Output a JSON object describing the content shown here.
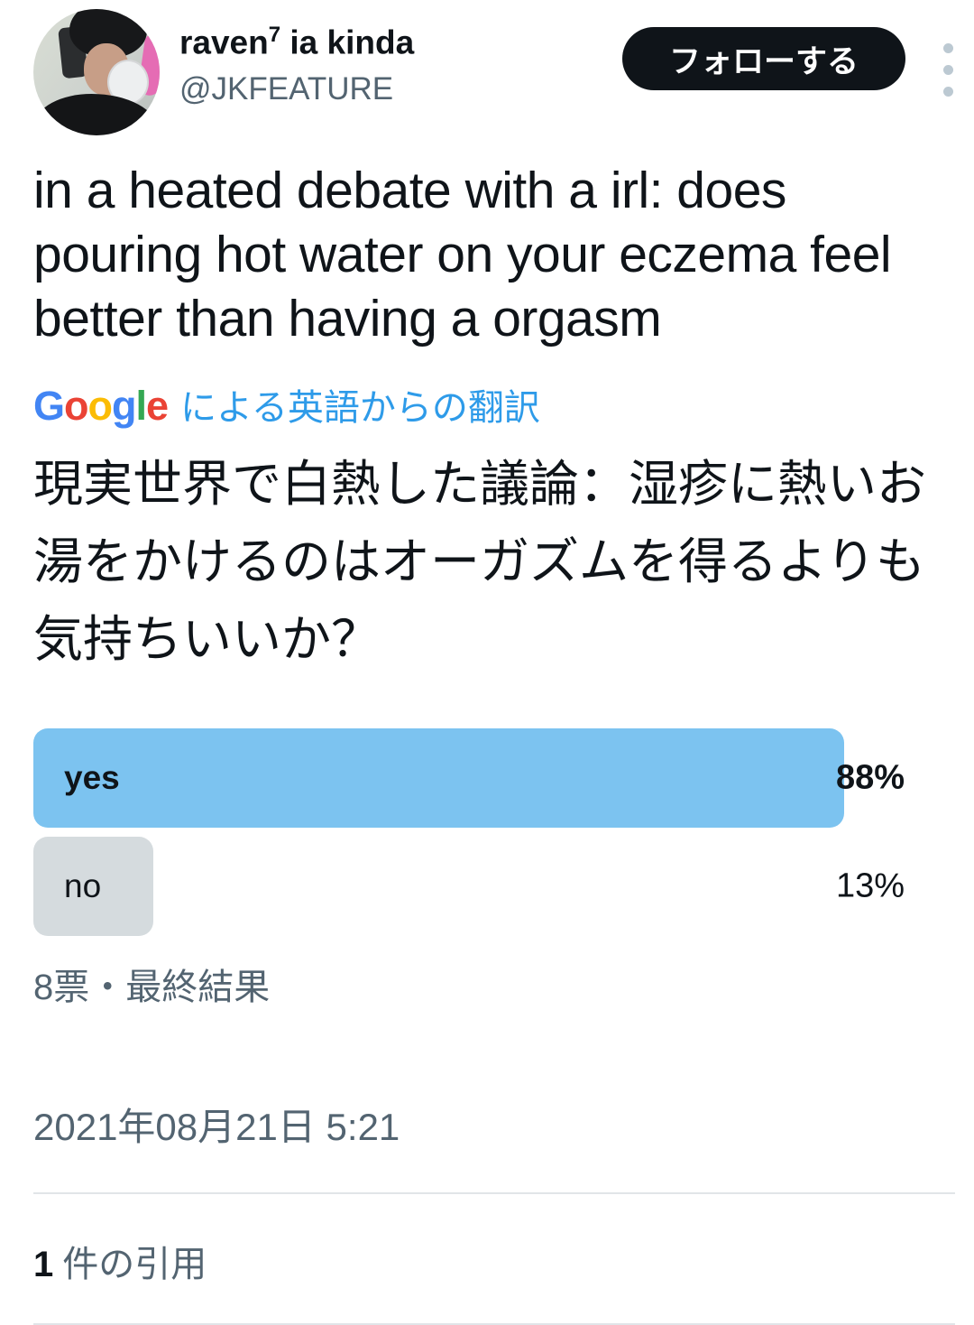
{
  "header": {
    "display_name": "raven",
    "display_name_superscript": "7",
    "display_name_rest": " ia kinda",
    "handle": "@JKFEATURE",
    "follow_button_label": "フォローする",
    "avatar_description": "mirror selfie, dark hair, holding white compact"
  },
  "tweet": {
    "original_lines": [
      "in a heated debate with a irl: does",
      "pouring hot water on your eczema feel",
      "better than having a orgasm"
    ],
    "translation_attribution": {
      "google_letters": [
        {
          "ch": "G",
          "color": "#4285F4"
        },
        {
          "ch": "o",
          "color": "#EA4335"
        },
        {
          "ch": "o",
          "color": "#FBBC05"
        },
        {
          "ch": "g",
          "color": "#4285F4"
        },
        {
          "ch": "l",
          "color": "#34A853"
        },
        {
          "ch": "e",
          "color": "#EA4335"
        }
      ],
      "label": "による英語からの翻訳",
      "link_color": "#2E9BE9"
    },
    "translated_lines": [
      "現実世界で白熱した議論：湿疹に熱いお",
      "湯をかけるのはオーガズムを得るよりも",
      "気持ちいいか？"
    ]
  },
  "poll": {
    "options": [
      {
        "label": "yes",
        "percent_label": "88%",
        "percent_value": 88,
        "winner": true,
        "bar_color": "#7CC3F0"
      },
      {
        "label": "no",
        "percent_label": "13%",
        "percent_value": 13,
        "winner": false,
        "bar_color": "#D5DBDE"
      }
    ],
    "summary": "8票・最終結果"
  },
  "meta": {
    "timestamp": "2021年08月21日 5:21"
  },
  "quotes": {
    "count": "1",
    "label": "件の引用"
  },
  "colors": {
    "text_primary": "#0F1419",
    "text_secondary": "#536471",
    "link_blue": "#2E9BE9",
    "poll_bar_winner": "#7CC3F0",
    "poll_bar_other": "#D5DBDE",
    "follow_button_bg": "#0F1419",
    "divider": "#E1E5E8"
  }
}
